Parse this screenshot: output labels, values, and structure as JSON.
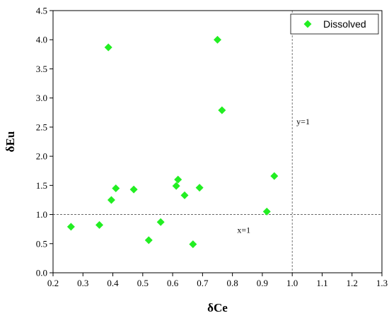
{
  "chart_data": {
    "type": "scatter",
    "xlabel": "δCe",
    "ylabel": "δEu",
    "xlim": [
      0.2,
      1.3
    ],
    "ylim": [
      0.0,
      4.5
    ],
    "x_ticks": [
      "0.2",
      "0.3",
      "0.4",
      "0.5",
      "0.6",
      "0.7",
      "0.8",
      "0.9",
      "1.0",
      "1.1",
      "1.2",
      "1.3"
    ],
    "y_ticks": [
      "0.0",
      "0.5",
      "1.0",
      "1.5",
      "2.0",
      "2.5",
      "3.0",
      "3.5",
      "4.0",
      "4.5"
    ],
    "grid": false,
    "legend_position": "top-right",
    "series": [
      {
        "name": "Dissolved",
        "color": "#22ee22",
        "marker": "diamond",
        "points": [
          {
            "x": 0.26,
            "y": 0.79
          },
          {
            "x": 0.355,
            "y": 0.82
          },
          {
            "x": 0.385,
            "y": 3.87
          },
          {
            "x": 0.395,
            "y": 1.25
          },
          {
            "x": 0.41,
            "y": 1.45
          },
          {
            "x": 0.47,
            "y": 1.43
          },
          {
            "x": 0.52,
            "y": 0.56
          },
          {
            "x": 0.56,
            "y": 0.87
          },
          {
            "x": 0.612,
            "y": 1.49
          },
          {
            "x": 0.618,
            "y": 1.6
          },
          {
            "x": 0.64,
            "y": 1.33
          },
          {
            "x": 0.668,
            "y": 0.49
          },
          {
            "x": 0.69,
            "y": 1.46
          },
          {
            "x": 0.75,
            "y": 4.0
          },
          {
            "x": 0.765,
            "y": 2.79
          },
          {
            "x": 0.915,
            "y": 1.05
          },
          {
            "x": 0.94,
            "y": 1.66
          }
        ]
      }
    ],
    "reference_lines": [
      {
        "axis": "x",
        "value": 1.0,
        "label": "y=1",
        "label_y": 2.5
      },
      {
        "axis": "y",
        "value": 1.0,
        "label": "x=1",
        "label_x": 0.83
      }
    ]
  }
}
